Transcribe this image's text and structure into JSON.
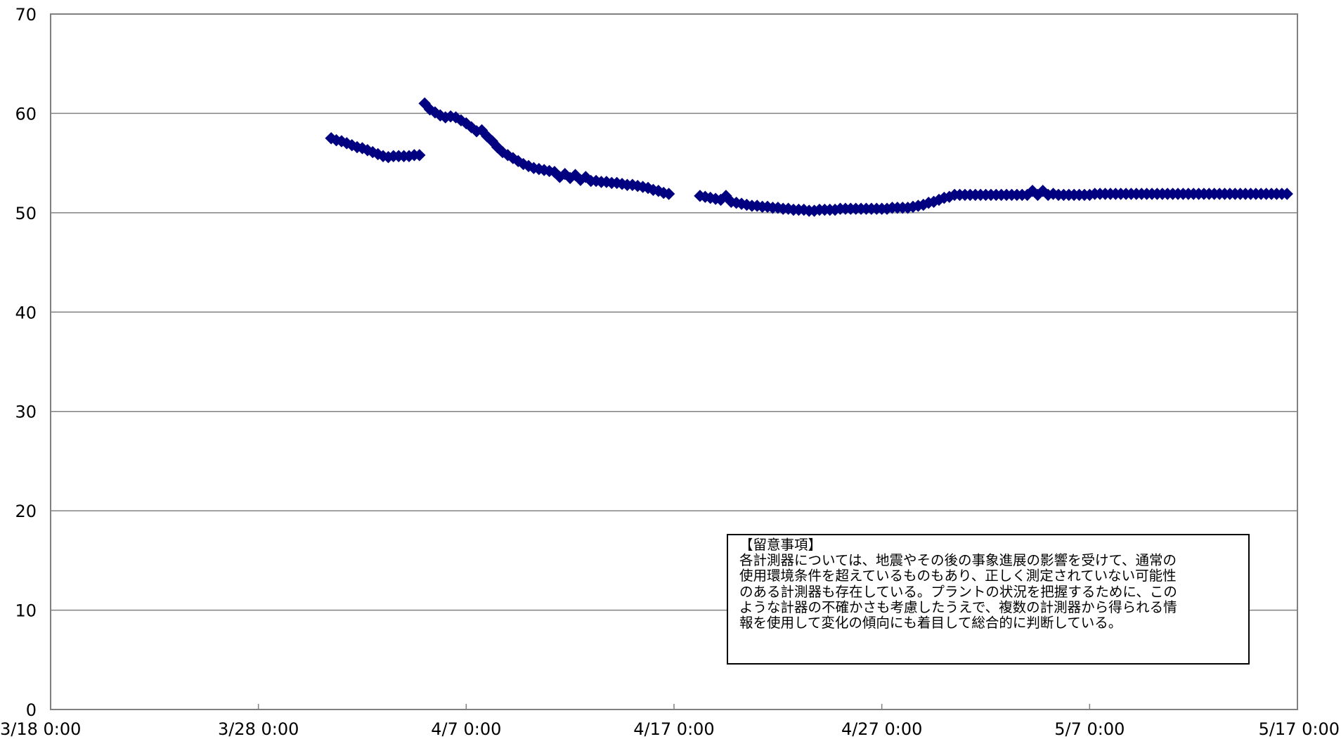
{
  "chart_data": {
    "type": "scatter",
    "title": "",
    "xlabel": "",
    "ylabel": "",
    "ylim": [
      0,
      70
    ],
    "yticks": [
      "0",
      "10",
      "20",
      "30",
      "40",
      "50",
      "60",
      "70"
    ],
    "xlim": [
      "3/18 0:00",
      "5/17 0:00"
    ],
    "xticks": [
      "3/18 0:00",
      "3/28 0:00",
      "4/7 0:00",
      "4/17 0:00",
      "4/27 0:00",
      "5/7 0:00",
      "5/17 0:00"
    ],
    "grid": "horizontal",
    "marker": "diamond",
    "marker_color": "#000080",
    "series": [
      {
        "x": [
          "3/31 12:00",
          "3/31 18:00",
          "4/1 0:00",
          "4/1 6:00",
          "4/1 12:00",
          "4/1 18:00",
          "4/2 0:00",
          "4/2 6:00",
          "4/2 12:00",
          "4/2 18:00",
          "4/3 0:00",
          "4/3 6:00",
          "4/3 12:00",
          "4/3 18:00",
          "4/4 0:00",
          "4/4 6:00",
          "4/4 12:00",
          "4/4 18:00",
          "4/5 0:00",
          "4/5 6:00",
          "4/5 12:00",
          "4/5 18:00",
          "4/6 0:00",
          "4/6 6:00",
          "4/6 12:00",
          "4/6 18:00",
          "4/7 0:00",
          "4/7 6:00",
          "4/7 12:00",
          "4/7 18:00",
          "4/8 0:00",
          "4/8 6:00",
          "4/8 12:00",
          "4/8 18:00",
          "4/9 0:00",
          "4/9 6:00",
          "4/9 12:00",
          "4/9 18:00",
          "4/10 0:00",
          "4/10 6:00",
          "4/10 12:00",
          "4/10 18:00",
          "4/11 0:00",
          "4/11 6:00",
          "4/11 12:00",
          "4/11 18:00",
          "4/12 0:00",
          "4/12 6:00",
          "4/12 12:00",
          "4/12 18:00",
          "4/13 0:00",
          "4/13 6:00",
          "4/13 12:00",
          "4/13 18:00",
          "4/14 0:00",
          "4/14 6:00",
          "4/14 12:00",
          "4/14 18:00",
          "4/15 0:00",
          "4/15 6:00",
          "4/15 12:00",
          "4/15 18:00",
          "4/16 0:00",
          "4/16 6:00",
          "4/16 12:00",
          "4/16 18:00",
          "4/18 6:00",
          "4/18 12:00",
          "4/18 18:00",
          "4/19 0:00",
          "4/19 6:00",
          "4/19 12:00",
          "4/19 18:00",
          "4/20 0:00",
          "4/20 6:00",
          "4/20 12:00",
          "4/20 18:00",
          "4/21 0:00",
          "4/21 6:00",
          "4/21 12:00",
          "4/21 18:00",
          "4/22 0:00",
          "4/22 6:00",
          "4/22 12:00",
          "4/22 18:00",
          "4/23 0:00",
          "4/23 6:00",
          "4/23 12:00",
          "4/23 18:00",
          "4/24 0:00",
          "4/24 6:00",
          "4/24 12:00",
          "4/24 18:00",
          "4/25 0:00",
          "4/25 6:00",
          "4/25 12:00",
          "4/25 18:00",
          "4/26 0:00",
          "4/26 6:00",
          "4/26 12:00",
          "4/26 18:00",
          "4/27 0:00",
          "4/27 6:00",
          "4/27 12:00",
          "4/27 18:00",
          "4/28 0:00",
          "4/28 6:00",
          "4/28 12:00",
          "4/28 18:00",
          "4/29 0:00",
          "4/29 6:00",
          "4/29 12:00",
          "4/29 18:00",
          "4/30 0:00",
          "4/30 6:00",
          "4/30 12:00",
          "4/30 18:00",
          "5/1 0:00",
          "5/1 6:00",
          "5/1 12:00",
          "5/1 18:00",
          "5/2 0:00",
          "5/2 6:00",
          "5/2 12:00",
          "5/2 18:00",
          "5/3 0:00",
          "5/3 6:00",
          "5/3 12:00",
          "5/3 18:00",
          "5/4 0:00",
          "5/4 6:00",
          "5/4 12:00",
          "5/4 18:00",
          "5/5 0:00",
          "5/5 6:00",
          "5/5 12:00",
          "5/5 18:00",
          "5/6 0:00",
          "5/6 6:00",
          "5/6 12:00",
          "5/6 18:00",
          "5/7 0:00",
          "5/7 6:00",
          "5/7 12:00",
          "5/7 18:00",
          "5/8 0:00",
          "5/8 6:00",
          "5/8 12:00",
          "5/8 18:00",
          "5/9 0:00",
          "5/9 6:00",
          "5/9 12:00",
          "5/9 18:00",
          "5/10 0:00",
          "5/10 6:00",
          "5/10 12:00",
          "5/10 18:00",
          "5/11 0:00",
          "5/11 6:00",
          "5/11 12:00",
          "5/11 18:00",
          "5/12 0:00",
          "5/12 6:00",
          "5/12 12:00",
          "5/12 18:00",
          "5/13 0:00",
          "5/13 6:00",
          "5/13 12:00",
          "5/13 18:00",
          "5/14 0:00",
          "5/14 6:00",
          "5/14 12:00",
          "5/14 18:00",
          "5/15 0:00",
          "5/15 6:00",
          "5/15 12:00",
          "5/15 18:00",
          "5/16 0:00",
          "5/16 6:00",
          "5/16 12:00"
        ],
        "y": [
          57.5,
          57.3,
          57.2,
          57.0,
          56.8,
          56.6,
          56.5,
          56.3,
          56.1,
          55.9,
          55.7,
          55.6,
          55.7,
          55.7,
          55.7,
          55.7,
          55.8,
          55.8,
          61.0,
          60.4,
          60.1,
          59.8,
          59.6,
          59.7,
          59.6,
          59.3,
          59.0,
          58.6,
          58.2,
          58.3,
          57.7,
          57.2,
          56.6,
          56.1,
          55.8,
          55.5,
          55.2,
          54.9,
          54.7,
          54.5,
          54.4,
          54.3,
          54.2,
          54.1,
          53.6,
          53.9,
          53.5,
          53.8,
          53.3,
          53.6,
          53.2,
          53.2,
          53.1,
          53.1,
          53.0,
          53.0,
          52.9,
          52.8,
          52.8,
          52.7,
          52.6,
          52.5,
          52.3,
          52.2,
          52.0,
          51.9,
          51.7,
          51.6,
          51.5,
          51.4,
          51.3,
          51.7,
          51.1,
          51.0,
          50.9,
          50.8,
          50.7,
          50.7,
          50.6,
          50.6,
          50.5,
          50.5,
          50.4,
          50.4,
          50.3,
          50.3,
          50.3,
          50.2,
          50.2,
          50.3,
          50.3,
          50.3,
          50.3,
          50.4,
          50.4,
          50.4,
          50.4,
          50.4,
          50.4,
          50.4,
          50.4,
          50.4,
          50.4,
          50.5,
          50.5,
          50.5,
          50.5,
          50.6,
          50.7,
          50.8,
          51.0,
          51.1,
          51.3,
          51.5,
          51.6,
          51.8,
          51.8,
          51.8,
          51.8,
          51.8,
          51.8,
          51.8,
          51.8,
          51.8,
          51.8,
          51.8,
          51.8,
          51.8,
          51.8,
          51.8,
          52.2,
          51.8,
          52.2,
          51.8,
          51.9,
          51.8,
          51.8,
          51.8,
          51.8,
          51.8,
          51.8,
          51.8,
          51.9,
          51.9,
          51.9,
          51.9,
          51.9,
          51.9,
          51.9,
          51.9,
          51.9,
          51.9,
          51.9,
          51.9,
          51.9,
          51.9,
          51.9,
          51.9,
          51.9,
          51.9,
          51.9,
          51.9,
          51.9,
          51.9,
          51.9,
          51.9,
          51.9,
          51.9,
          51.9,
          51.9,
          51.9,
          51.9,
          51.9,
          51.9,
          51.9,
          51.9,
          51.9,
          51.9,
          51.9,
          51.9
        ]
      }
    ]
  },
  "note": {
    "lines": [
      "【留意事項】",
      "各計測器については、地震やその後の事象進展の影響を受けて、通常の",
      "使用環境条件を超えているものもあり、正しく測定されていない可能性",
      "のある計測器も存在している。プラントの状況を把握するために、この",
      "ような計器の不確かさも考慮したうえで、複数の計測器から得られる情",
      "報を使用して変化の傾向にも着目して総合的に判断している。"
    ]
  }
}
